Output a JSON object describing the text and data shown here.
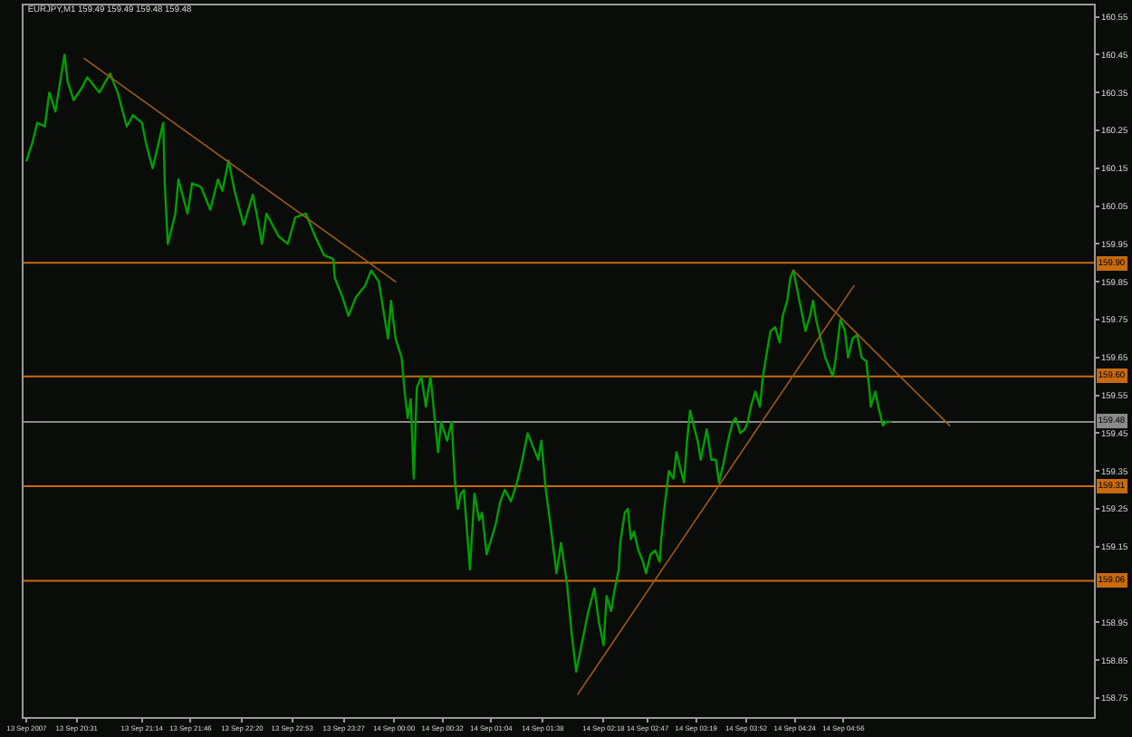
{
  "chart_data": {
    "type": "line",
    "title": "EURJPY,M1 159.49 159.49 159.48 159.48",
    "x": [
      "2007-09-13T19:58",
      "2007-09-13T20:02",
      "2007-09-13T20:05",
      "2007-09-13T20:10",
      "2007-09-13T20:13",
      "2007-09-13T20:17",
      "2007-09-13T20:23",
      "2007-09-13T20:25",
      "2007-09-13T20:29",
      "2007-09-13T20:34",
      "2007-09-13T20:38",
      "2007-09-13T20:46",
      "2007-09-13T20:53",
      "2007-09-13T20:58",
      "2007-09-13T21:04",
      "2007-09-13T21:08",
      "2007-09-13T21:14",
      "2007-09-13T21:17",
      "2007-09-13T21:21",
      "2007-09-13T21:24",
      "2007-09-13T21:28",
      "2007-09-13T21:29",
      "2007-09-13T21:31",
      "2007-09-13T21:36",
      "2007-09-13T21:38",
      "2007-09-13T21:44",
      "2007-09-13T21:47",
      "2007-09-13T21:53",
      "2007-09-13T21:59",
      "2007-09-13T22:04",
      "2007-09-13T22:07",
      "2007-09-13T22:11",
      "2007-09-13T22:15",
      "2007-09-13T22:21",
      "2007-09-13T22:27",
      "2007-09-13T22:30",
      "2007-09-13T22:33",
      "2007-09-13T22:36",
      "2007-09-13T22:44",
      "2007-09-13T22:50",
      "2007-09-13T22:55",
      "2007-09-13T23:02",
      "2007-09-13T23:08",
      "2007-09-13T23:14",
      "2007-09-13T23:20",
      "2007-09-13T23:21",
      "2007-09-13T23:26",
      "2007-09-13T23:30",
      "2007-09-13T23:35",
      "2007-09-13T23:41",
      "2007-09-13T23:45",
      "2007-09-13T23:50",
      "2007-09-13T23:56",
      "2007-09-13T23:58",
      "2007-09-14T00:01",
      "2007-09-14T00:05",
      "2007-09-14T00:07",
      "2007-09-14T00:09",
      "2007-09-14T00:11",
      "2007-09-14T00:13",
      "2007-09-14T00:15",
      "2007-09-14T00:18",
      "2007-09-14T00:21",
      "2007-09-14T00:24",
      "2007-09-14T00:27",
      "2007-09-14T00:29",
      "2007-09-14T00:31",
      "2007-09-14T00:35",
      "2007-09-14T00:38",
      "2007-09-14T00:40",
      "2007-09-14T00:42",
      "2007-09-14T00:44",
      "2007-09-14T00:46",
      "2007-09-14T00:50",
      "2007-09-14T00:53",
      "2007-09-14T00:56",
      "2007-09-14T00:58",
      "2007-09-14T01:01",
      "2007-09-14T01:04",
      "2007-09-14T01:07",
      "2007-09-14T01:10",
      "2007-09-14T01:13",
      "2007-09-14T01:17",
      "2007-09-14T01:21",
      "2007-09-14T01:24",
      "2007-09-14T01:28",
      "2007-09-14T01:32",
      "2007-09-14T01:35",
      "2007-09-14T01:37",
      "2007-09-14T01:40",
      "2007-09-14T01:43",
      "2007-09-14T01:47",
      "2007-09-14T01:50",
      "2007-09-14T01:54",
      "2007-09-14T01:57",
      "2007-09-14T02:00",
      "2007-09-14T02:05",
      "2007-09-14T02:08",
      "2007-09-14T02:12",
      "2007-09-14T02:15",
      "2007-09-14T02:18",
      "2007-09-14T02:20",
      "2007-09-14T02:23",
      "2007-09-14T02:25",
      "2007-09-14T02:28",
      "2007-09-14T02:29",
      "2007-09-14T02:32",
      "2007-09-14T02:34",
      "2007-09-14T02:36",
      "2007-09-14T02:38",
      "2007-09-14T02:41",
      "2007-09-14T02:44",
      "2007-09-14T02:46",
      "2007-09-14T02:49",
      "2007-09-14T02:52",
      "2007-09-14T02:55",
      "2007-09-14T02:56",
      "2007-09-14T02:58",
      "2007-09-14T03:01",
      "2007-09-14T03:04",
      "2007-09-14T03:06",
      "2007-09-14T03:09",
      "2007-09-14T03:11",
      "2007-09-14T03:13",
      "2007-09-14T03:15",
      "2007-09-14T03:18",
      "2007-09-14T03:20",
      "2007-09-14T03:22",
      "2007-09-14T03:26",
      "2007-09-14T03:29",
      "2007-09-14T03:32",
      "2007-09-14T03:34",
      "2007-09-14T03:37",
      "2007-09-14T03:40",
      "2007-09-14T03:43",
      "2007-09-14T03:45",
      "2007-09-14T03:48",
      "2007-09-14T03:51",
      "2007-09-14T03:53",
      "2007-09-14T03:55",
      "2007-09-14T03:58",
      "2007-09-14T04:01",
      "2007-09-14T04:03",
      "2007-09-14T04:05",
      "2007-09-14T04:08",
      "2007-09-14T04:11",
      "2007-09-14T04:14",
      "2007-09-14T04:16",
      "2007-09-14T04:19",
      "2007-09-14T04:21",
      "2007-09-14T04:23",
      "2007-09-14T04:25",
      "2007-09-14T04:28",
      "2007-09-14T04:31",
      "2007-09-14T04:34",
      "2007-09-14T04:36",
      "2007-09-14T04:38",
      "2007-09-14T04:41",
      "2007-09-14T04:44",
      "2007-09-14T04:47",
      "2007-09-14T04:49",
      "2007-09-14T04:51",
      "2007-09-14T04:54",
      "2007-09-14T04:57",
      "2007-09-14T04:59",
      "2007-09-14T05:02",
      "2007-09-14T05:05",
      "2007-09-14T05:08",
      "2007-09-14T05:11",
      "2007-09-14T05:13",
      "2007-09-14T05:14",
      "2007-09-14T05:17",
      "2007-09-14T05:19",
      "2007-09-14T05:22",
      "2007-09-14T05:24",
      "2007-09-14T05:27"
    ],
    "series": [
      {
        "color": "#00a000",
        "values": [
          160.17,
          160.22,
          160.27,
          160.26,
          160.35,
          160.3,
          160.45,
          160.38,
          160.33,
          160.36,
          160.39,
          160.35,
          160.4,
          160.35,
          160.26,
          160.29,
          160.27,
          160.21,
          160.15,
          160.2,
          160.27,
          160.11,
          159.95,
          160.03,
          160.12,
          160.03,
          160.11,
          160.1,
          160.04,
          160.12,
          160.09,
          160.17,
          160.09,
          160.0,
          160.08,
          160.02,
          159.95,
          160.03,
          159.97,
          159.95,
          160.02,
          160.03,
          159.97,
          159.92,
          159.91,
          159.86,
          159.81,
          159.76,
          159.81,
          159.84,
          159.88,
          159.85,
          159.7,
          159.8,
          159.7,
          159.65,
          159.56,
          159.49,
          159.54,
          159.33,
          159.57,
          159.6,
          159.52,
          159.6,
          159.48,
          159.4,
          159.48,
          159.43,
          159.48,
          159.33,
          159.25,
          159.29,
          159.3,
          159.09,
          159.29,
          159.22,
          159.24,
          159.13,
          159.17,
          159.21,
          159.27,
          159.3,
          159.27,
          159.32,
          159.37,
          159.45,
          159.41,
          159.38,
          159.43,
          159.3,
          159.21,
          159.08,
          159.16,
          159.05,
          158.92,
          158.82,
          158.92,
          158.98,
          159.04,
          158.95,
          158.89,
          159.02,
          158.98,
          159.03,
          159.09,
          159.16,
          159.24,
          159.25,
          159.17,
          159.19,
          159.14,
          159.11,
          159.08,
          159.13,
          159.14,
          159.11,
          159.17,
          159.25,
          159.35,
          159.33,
          159.4,
          159.35,
          159.32,
          159.43,
          159.51,
          159.46,
          159.43,
          159.38,
          159.46,
          159.38,
          159.38,
          159.32,
          159.37,
          159.43,
          159.48,
          159.49,
          159.45,
          159.46,
          159.48,
          159.52,
          159.56,
          159.52,
          159.6,
          159.65,
          159.72,
          159.73,
          159.69,
          159.76,
          159.8,
          159.86,
          159.88,
          159.84,
          159.78,
          159.72,
          159.76,
          159.8,
          159.75,
          159.7,
          159.65,
          159.62,
          159.6,
          159.65,
          159.75,
          159.72,
          159.65,
          159.7,
          159.71,
          159.65,
          159.64,
          159.57,
          159.52,
          159.56,
          159.52,
          159.47,
          159.48,
          159.48
        ]
      },
      {
        "type": "line",
        "color": "#a05a1e",
        "x": [
          "2007-09-13T20:36",
          "2007-09-14T00:01"
        ],
        "values": [
          160.44,
          159.85
        ]
      },
      {
        "type": "line",
        "color": "#a05a1e",
        "x": [
          "2007-09-14T02:01",
          "2007-09-14T05:03"
        ],
        "values": [
          158.76,
          159.84
        ]
      },
      {
        "type": "line",
        "color": "#a05a1e",
        "x": [
          "2007-09-14T04:23",
          "2007-09-14T06:06"
        ],
        "values": [
          159.88,
          159.47
        ]
      }
    ],
    "xlim": [
      "2007-09-13T19:56",
      "2007-09-14T07:41"
    ],
    "xticks": [
      {
        "value": "2007-09-13T19:58",
        "label": "13 Sep 2007"
      },
      {
        "value": "2007-09-13T20:31",
        "label": "13 Sep 20:31"
      },
      {
        "value": "2007-09-13T21:14",
        "label": "13 Sep 21:14"
      },
      {
        "value": "2007-09-13T21:46",
        "label": "13 Sep 21:46"
      },
      {
        "value": "2007-09-13T22:20",
        "label": "13 Sep 22:20"
      },
      {
        "value": "2007-09-13T22:53",
        "label": "13 Sep 22:53"
      },
      {
        "value": "2007-09-13T23:27",
        "label": "13 Sep 23:27"
      },
      {
        "value": "2007-09-14T00:00",
        "label": "14 Sep 00:00"
      },
      {
        "value": "2007-09-14T00:32",
        "label": "14 Sep 00:32"
      },
      {
        "value": "2007-09-14T01:04",
        "label": "14 Sep 01:04"
      },
      {
        "value": "2007-09-14T01:38",
        "label": "14 Sep 01:38"
      },
      {
        "value": "2007-09-14T02:18",
        "label": "14 Sep 02:18"
      },
      {
        "value": "2007-09-14T02:47",
        "label": "14 Sep 02:47"
      },
      {
        "value": "2007-09-14T03:19",
        "label": "14 Sep 03:19"
      },
      {
        "value": "2007-09-14T03:52",
        "label": "14 Sep 03:52"
      },
      {
        "value": "2007-09-14T04:24",
        "label": "14 Sep 04:24"
      },
      {
        "value": "2007-09-14T04:56",
        "label": "14 Sep 04:56"
      }
    ],
    "ylim": [
      158.7,
      160.58
    ],
    "yticks": [
      158.75,
      158.85,
      158.95,
      159.15,
      159.25,
      159.35,
      159.45,
      159.55,
      159.65,
      159.75,
      159.85,
      159.95,
      160.05,
      160.15,
      160.25,
      160.35,
      160.45,
      160.55
    ],
    "ref_lines": [
      {
        "axis": "y",
        "value": 159.9,
        "label": "159.90",
        "color": "#c86a10"
      },
      {
        "axis": "y",
        "value": 159.6,
        "label": "159.60",
        "color": "#c86a10"
      },
      {
        "axis": "y",
        "value": 159.31,
        "label": "159.31",
        "color": "#c86a10"
      },
      {
        "axis": "y",
        "value": 159.06,
        "label": "159.06",
        "color": "#c86a10"
      },
      {
        "axis": "y",
        "value": 159.48,
        "label": "159.48",
        "color": "#8a8a8a"
      }
    ],
    "grid": false,
    "marker": "none",
    "line_style": "solid"
  }
}
